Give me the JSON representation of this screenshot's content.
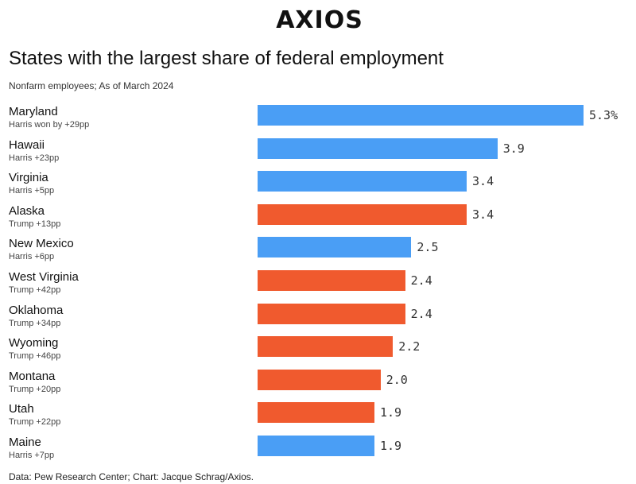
{
  "brand": {
    "logo_text": "AXIOS"
  },
  "header": {
    "title": "States with the largest share of federal employment",
    "subtitle": "Nonfarm employees; As of March 2024"
  },
  "footer": {
    "source": "Data: Pew Research Center; Chart: Jacque Schrag/Axios."
  },
  "colors": {
    "harris": "#4a9ef5",
    "trump": "#f05a2e"
  },
  "chart_data": {
    "type": "bar",
    "orientation": "horizontal",
    "title": "States with the largest share of federal employment",
    "subtitle": "Nonfarm employees; As of March 2024",
    "unit": "%",
    "xlim": [
      0,
      5.3
    ],
    "grid": false,
    "categories": [
      "Maryland",
      "Hawaii",
      "Virginia",
      "Alaska",
      "New Mexico",
      "West Virginia",
      "Oklahoma",
      "Wyoming",
      "Montana",
      "Utah",
      "Maine"
    ],
    "values": [
      5.3,
      3.9,
      3.4,
      3.4,
      2.5,
      2.4,
      2.4,
      2.2,
      2.0,
      1.9,
      1.9
    ],
    "value_labels": [
      "5.3%",
      "3.9",
      "3.4",
      "3.4",
      "2.5",
      "2.4",
      "2.4",
      "2.2",
      "2.0",
      "1.9",
      "1.9"
    ],
    "notes": [
      "Harris won by +29pp",
      "Harris +23pp",
      "Harris +5pp",
      "Trump +13pp",
      "Harris +6pp",
      "Trump +42pp",
      "Trump +34pp",
      "Trump +46pp",
      "Trump +20pp",
      "Trump +22pp",
      "Harris +7pp"
    ],
    "winner": [
      "harris",
      "harris",
      "harris",
      "trump",
      "harris",
      "trump",
      "trump",
      "trump",
      "trump",
      "trump",
      "harris"
    ]
  }
}
